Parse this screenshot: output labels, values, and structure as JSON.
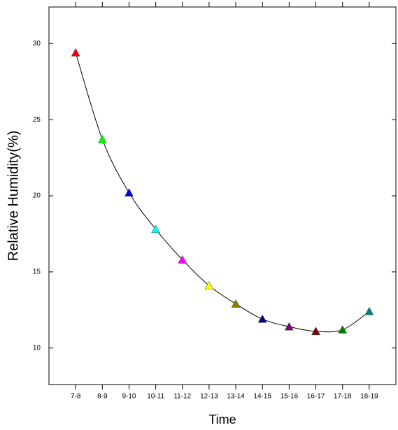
{
  "chart_data": {
    "type": "line",
    "x_label": "Time",
    "y_label": "Relative Humidity(%)",
    "categories": [
      "7-8",
      "8-9",
      "9-10",
      "10-11",
      "11-12",
      "12-13",
      "13-14",
      "14-15",
      "15-16",
      "16-17",
      "17-18",
      "18-19"
    ],
    "values": [
      29.4,
      23.7,
      20.2,
      17.8,
      15.8,
      14.1,
      12.9,
      11.9,
      11.4,
      11.1,
      11.2,
      12.4
    ],
    "marker_colors": [
      "#ff0000",
      "#00ff00",
      "#0000ff",
      "#00ffff",
      "#ff00ff",
      "#ffff00",
      "#808000",
      "#000080",
      "#800080",
      "#800000",
      "#008000",
      "#008080"
    ],
    "line_color": "#000000",
    "ylim": [
      7.6,
      32.4
    ],
    "yticks": [
      10,
      15,
      20,
      25,
      30
    ]
  }
}
